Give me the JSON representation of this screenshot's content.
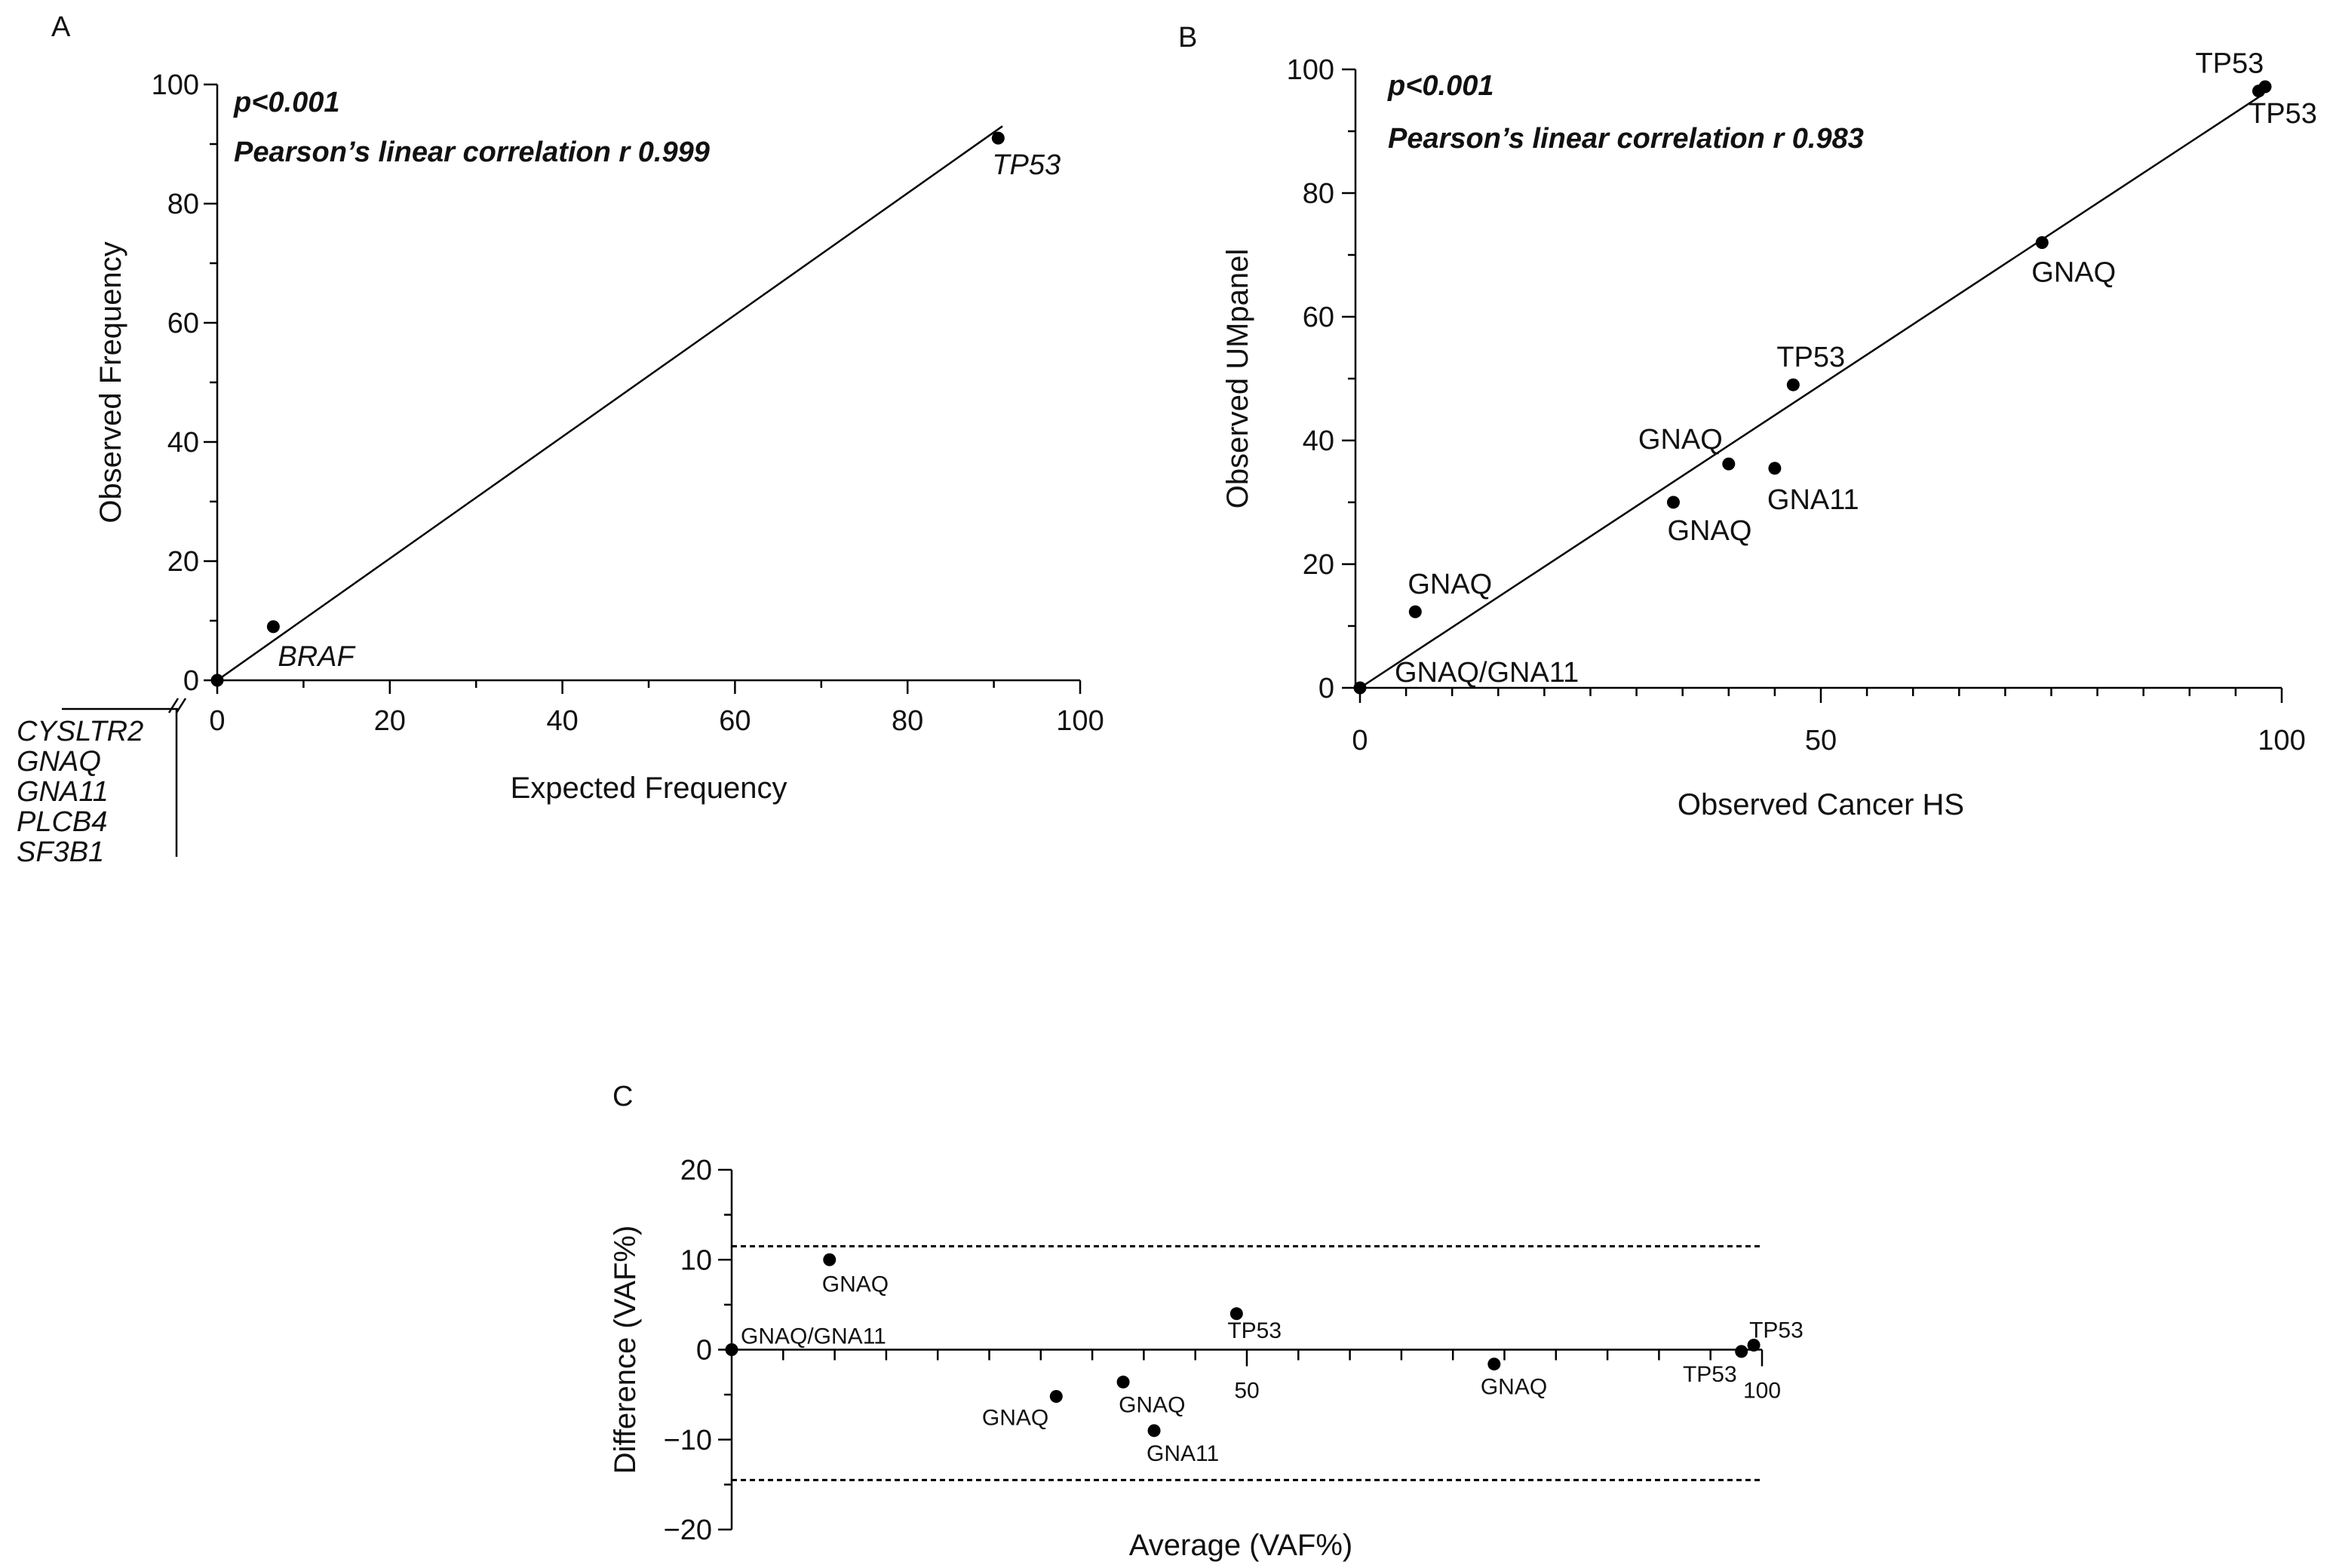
{
  "chart_data": [
    {
      "panel": "A",
      "type": "scatter",
      "xlabel": "Expected Frequency",
      "ylabel": "Observed Frequency",
      "xlim": [
        0,
        100
      ],
      "ylim": [
        0,
        100
      ],
      "xticks": [
        0,
        20,
        40,
        60,
        80,
        100
      ],
      "yticks": [
        0,
        20,
        40,
        60,
        80,
        100
      ],
      "annotations": [
        "p<0.001",
        "Pearson’s linear correlation r 0.999"
      ],
      "fit_line": {
        "x": [
          0,
          91
        ],
        "y": [
          0,
          93
        ]
      },
      "points": [
        {
          "x": 0,
          "y": 0,
          "label": ""
        },
        {
          "x": 6.5,
          "y": 9,
          "label": "BRAF"
        },
        {
          "x": 90.5,
          "y": 91,
          "label": "TP53"
        }
      ],
      "zero_point_genes": [
        "CYSLTR2",
        "GNAQ",
        "GNA11",
        "PLCB4",
        "SF3B1"
      ]
    },
    {
      "panel": "B",
      "type": "scatter",
      "xlabel": "Observed Cancer HS",
      "ylabel": "Observed UMpanel",
      "xlim": [
        0,
        100
      ],
      "ylim": [
        0,
        100
      ],
      "xticks": [
        0,
        50,
        100
      ],
      "yticks": [
        0,
        20,
        40,
        60,
        80,
        100
      ],
      "annotations": [
        "p<0.001",
        "Pearson’s linear correlation r 0.983"
      ],
      "fit_line": {
        "x": [
          0,
          98
        ],
        "y": [
          0,
          96
        ]
      },
      "points": [
        {
          "x": 0,
          "y": 0,
          "label": "GNAQ/GNA11"
        },
        {
          "x": 6,
          "y": 12.3,
          "label": "GNAQ"
        },
        {
          "x": 34,
          "y": 30,
          "label": "GNAQ"
        },
        {
          "x": 40,
          "y": 36.2,
          "label": "GNAQ"
        },
        {
          "x": 45,
          "y": 35.5,
          "label": "GNA11"
        },
        {
          "x": 47,
          "y": 49,
          "label": "TP53"
        },
        {
          "x": 74,
          "y": 72,
          "label": "GNAQ"
        },
        {
          "x": 97.5,
          "y": 96.5,
          "label": "TP53"
        },
        {
          "x": 98.2,
          "y": 97.2,
          "label": "TP53"
        }
      ]
    },
    {
      "panel": "C",
      "type": "scatter",
      "xlabel": "Average (VAF%)",
      "ylabel": "Difference (VAF%)",
      "xlim": [
        0,
        100
      ],
      "ylim": [
        -20,
        20
      ],
      "xticks": [
        50,
        100
      ],
      "yticks": [
        20,
        10,
        0,
        -10,
        -20
      ],
      "limit_lines": [
        11.5,
        -14.5
      ],
      "points": [
        {
          "x": 0,
          "y": 0,
          "label": "GNAQ/GNA11"
        },
        {
          "x": 9.5,
          "y": 10,
          "label": "GNAQ"
        },
        {
          "x": 31.5,
          "y": -5.2,
          "label": "GNAQ"
        },
        {
          "x": 38,
          "y": -3.6,
          "label": "GNAQ"
        },
        {
          "x": 41,
          "y": -9,
          "label": "GNA11"
        },
        {
          "x": 49,
          "y": 4,
          "label": "TP53"
        },
        {
          "x": 74,
          "y": -1.6,
          "label": "GNAQ"
        },
        {
          "x": 98,
          "y": -0.2,
          "label": "TP53"
        },
        {
          "x": 99.2,
          "y": 0.5,
          "label": "TP53"
        }
      ]
    }
  ]
}
